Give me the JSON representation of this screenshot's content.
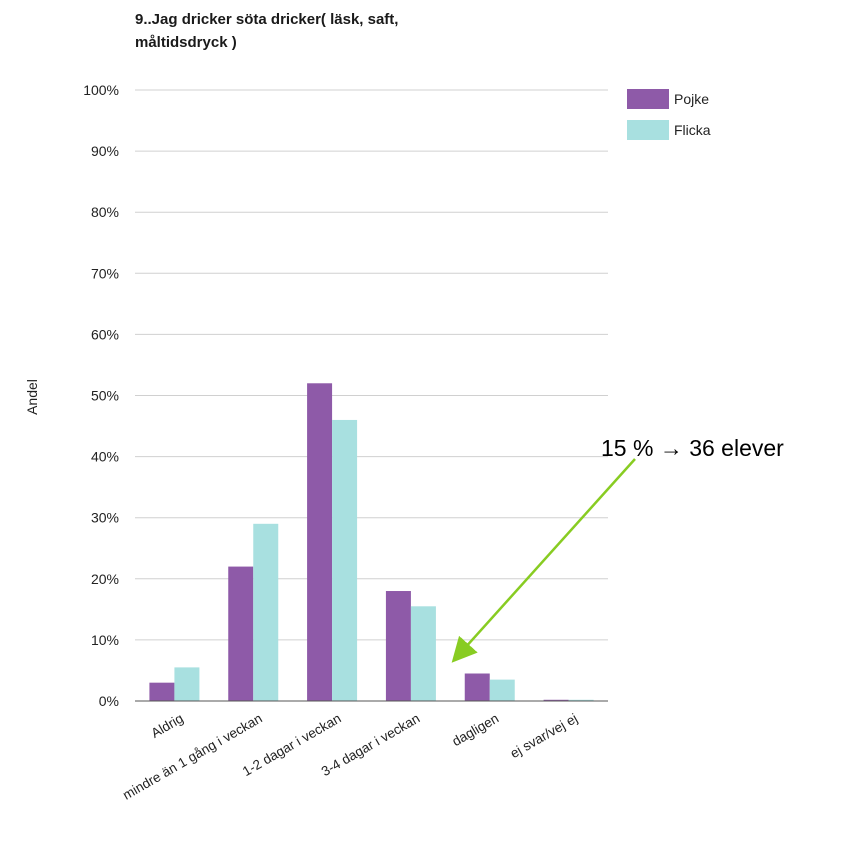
{
  "chart_data": {
    "type": "bar",
    "title_lines": [
      "9..Jag dricker söta dricker( läsk, saft,",
      "måltidsdryck )"
    ],
    "ylabel": "Andel",
    "xlabel": "",
    "categories": [
      "Aldrig",
      "mindre än 1 gång i veckan",
      "1-2 dagar i veckan",
      "3-4 dagar i veckan",
      "dagligen",
      "ej svar/vej ej"
    ],
    "series": [
      {
        "name": "Pojke",
        "color": "#8e5aa8",
        "values": [
          3,
          22,
          52,
          18,
          4.5,
          0.2
        ]
      },
      {
        "name": "Flicka",
        "color": "#a8e0e0",
        "values": [
          5.5,
          29,
          46,
          15.5,
          3.5,
          0.2
        ]
      }
    ],
    "ylim": [
      0,
      100
    ],
    "yticks": [
      "0%",
      "10%",
      "20%",
      "30%",
      "40%",
      "50%",
      "60%",
      "70%",
      "80%",
      "90%",
      "100%"
    ],
    "grid": true,
    "legend_position": "top-right",
    "annotation": {
      "text": "15 % → 36 elever",
      "arrow_color": "#88cc22",
      "target_category": "3-4 dagar i veckan",
      "target_series": "Flicka"
    }
  }
}
